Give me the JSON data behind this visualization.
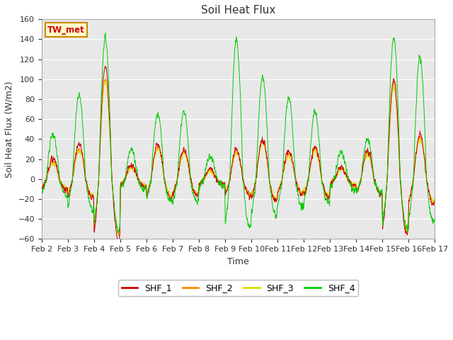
{
  "title": "Soil Heat Flux",
  "xlabel": "Time",
  "ylabel": "Soil Heat Flux (W/m2)",
  "annotation": "TW_met",
  "annotation_bg": "#ffffcc",
  "annotation_border": "#cc8800",
  "annotation_text_color": "#cc0000",
  "ylim": [
    -60,
    160
  ],
  "yticks": [
    -60,
    -40,
    -20,
    0,
    20,
    40,
    60,
    80,
    100,
    120,
    140,
    160
  ],
  "legend_labels": [
    "SHF_1",
    "SHF_2",
    "SHF_3",
    "SHF_4"
  ],
  "colors": {
    "SHF_1": "#cc0000",
    "SHF_2": "#ff8800",
    "SHF_3": "#dddd00",
    "SHF_4": "#00cc00"
  },
  "linewidth": 0.7,
  "fig_bg": "#ffffff",
  "plot_bg": "#e8e8e8",
  "grid_color": "#ffffff",
  "n_days": 15,
  "start_day": 2,
  "points_per_day": 144
}
